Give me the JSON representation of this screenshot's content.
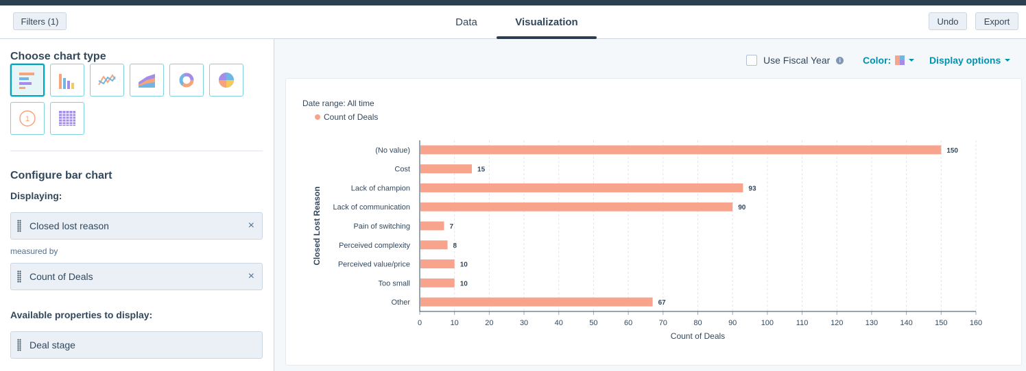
{
  "header": {
    "filters_label": "Filters (1)",
    "tabs": [
      {
        "label": "Data",
        "active": false
      },
      {
        "label": "Visualization",
        "active": true
      }
    ],
    "undo_label": "Undo",
    "export_label": "Export"
  },
  "sidebar": {
    "choose_chart_type": "Choose chart type",
    "chart_types": [
      {
        "name": "bar-horizontal",
        "icon": "horizontal-bar-chart-icon",
        "selected": true
      },
      {
        "name": "column",
        "icon": "column-chart-icon",
        "selected": false
      },
      {
        "name": "line",
        "icon": "line-chart-icon",
        "selected": false
      },
      {
        "name": "area",
        "icon": "area-chart-icon",
        "selected": false
      },
      {
        "name": "donut",
        "icon": "donut-chart-icon",
        "selected": false
      },
      {
        "name": "pie",
        "icon": "pie-chart-icon",
        "selected": false
      },
      {
        "name": "summary",
        "icon": "summary-number-icon",
        "selected": false
      },
      {
        "name": "table",
        "icon": "table-chart-icon",
        "selected": false
      }
    ],
    "summary_icon_text": "1",
    "configure_title": "Configure bar chart",
    "displaying_label": "Displaying:",
    "displaying_value": "Closed lost reason",
    "measured_by_label": "measured by",
    "measured_value": "Count of Deals",
    "available_label": "Available properties to display:",
    "available_items": [
      "Deal stage"
    ],
    "remove_glyph": "×"
  },
  "toolbar": {
    "fiscal_year_label": "Use Fiscal Year",
    "fiscal_year_checked": false,
    "info_glyph": "i",
    "color_label": "Color:",
    "display_options_label": "Display options"
  },
  "chart_data": {
    "type": "bar",
    "orientation": "horizontal",
    "date_range": "Date range: All time",
    "legend": [
      "Count of Deals"
    ],
    "series": [
      {
        "name": "Count of Deals",
        "color": "#f8a38c",
        "values": [
          150,
          15,
          93,
          90,
          7,
          8,
          10,
          10,
          67
        ]
      }
    ],
    "categories": [
      "(No value)",
      "Cost",
      "Lack of champion",
      "Lack of communication",
      "Pain of switching",
      "Perceived complexity",
      "Perceived value/price",
      "Too small",
      "Other"
    ],
    "xlabel": "Count of Deals",
    "ylabel": "Closed Lost Reason",
    "xlim": [
      0,
      160
    ],
    "xticks": [
      0,
      10,
      20,
      30,
      40,
      50,
      60,
      70,
      80,
      90,
      100,
      110,
      120,
      130,
      140,
      150,
      160
    ],
    "grid": true
  },
  "colors": {
    "accent": "#00a4bd",
    "bar": "#f8a38c",
    "header_dark": "#2d3e50"
  }
}
